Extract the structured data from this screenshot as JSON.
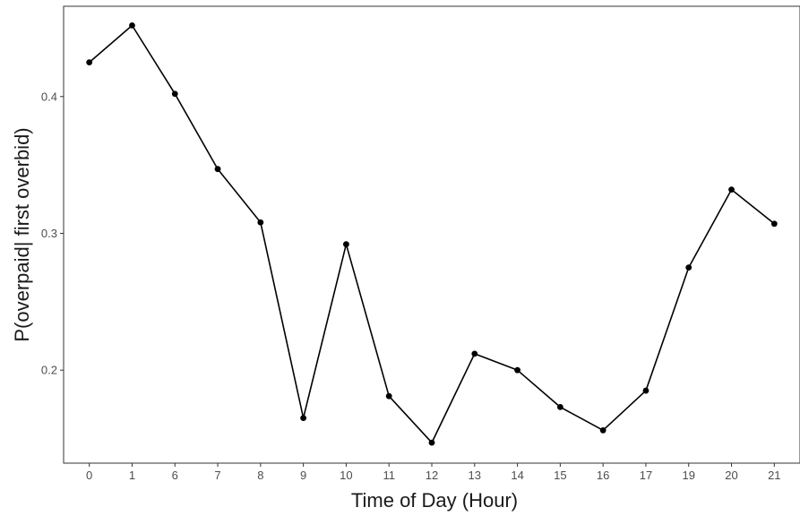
{
  "chart_data": {
    "type": "line",
    "title": "",
    "xlabel": "Time of Day (Hour)",
    "ylabel": "P(overpaid| first overbid)",
    "categories": [
      "0",
      "1",
      "6",
      "7",
      "8",
      "9",
      "10",
      "11",
      "12",
      "13",
      "14",
      "15",
      "16",
      "17",
      "19",
      "20",
      "21"
    ],
    "series": [
      {
        "values": [
          0.425,
          0.452,
          0.402,
          0.347,
          0.308,
          0.165,
          0.292,
          0.181,
          0.147,
          0.212,
          0.2,
          0.173,
          0.156,
          0.185,
          0.275,
          0.332,
          0.307
        ]
      }
    ],
    "ylim": [
      0.132,
      0.466
    ],
    "yticks": [
      0.2,
      0.3,
      0.4
    ],
    "ytick_labels": [
      "0.2",
      "0.3",
      "0.4"
    ],
    "grid": true,
    "legend": "none",
    "colors": {
      "line": "#000000",
      "point": "#000000",
      "grid_major": "#ebebeb",
      "grid_minor": "#f5f5f5",
      "panel_border": "#333333",
      "tick_text": "#4d4d4d",
      "axis_title": "#1a1a1a"
    }
  }
}
